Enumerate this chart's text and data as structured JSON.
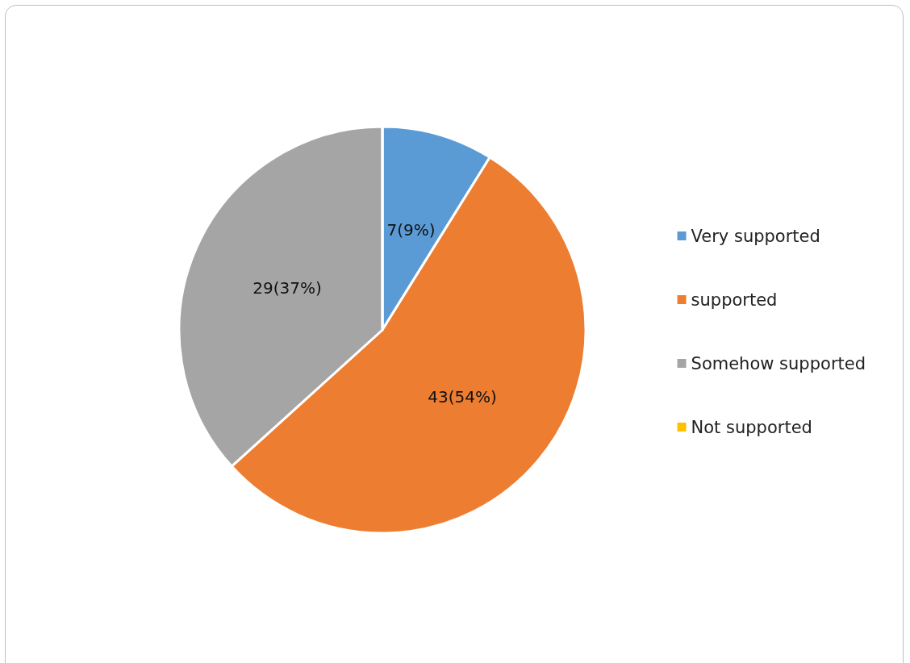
{
  "chart_data": {
    "type": "pie",
    "categories": [
      "Very supported",
      "supported",
      "Somehow supported",
      "Not supported"
    ],
    "values": [
      7,
      43,
      29,
      0
    ],
    "colors": [
      "#5b9bd5",
      "#ed7d31",
      "#a5a5a5",
      "#ffc000"
    ],
    "value_labels": [
      "7(9%)",
      "43(54%)",
      "29(37%)",
      null
    ],
    "legend": "right"
  }
}
